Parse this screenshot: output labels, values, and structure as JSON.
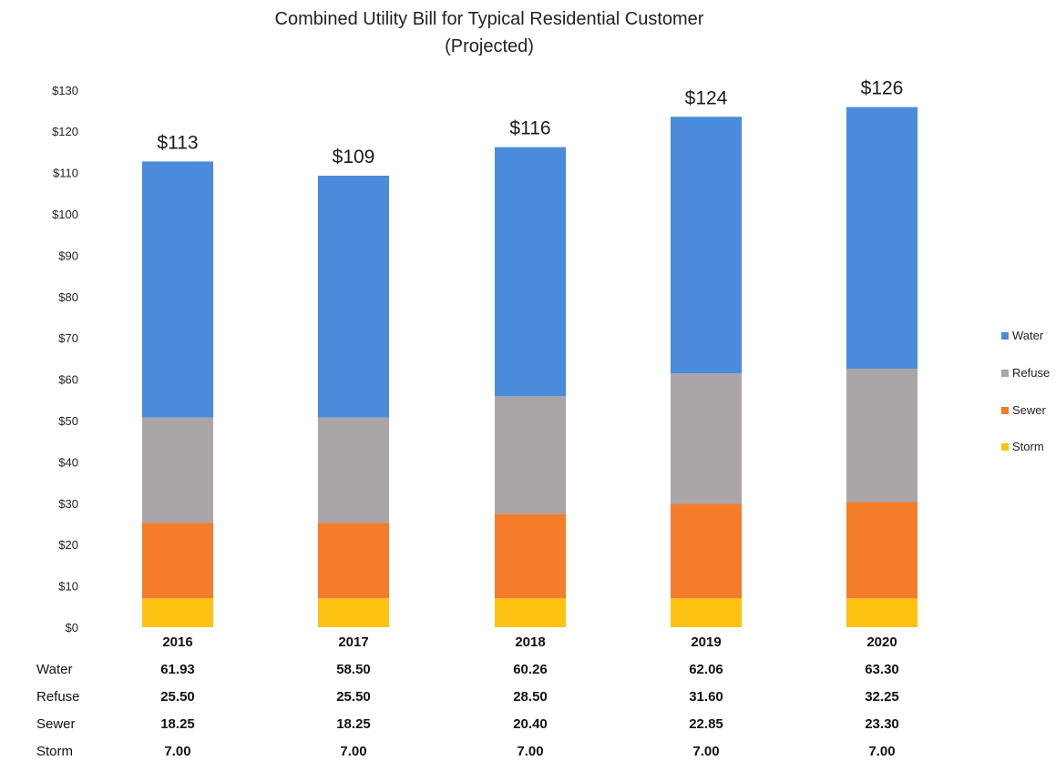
{
  "chart_data": {
    "type": "bar",
    "stacked": true,
    "title": "Combined Utility Bill for Typical Residential Customer",
    "subtitle": "(Projected)",
    "categories": [
      "2016",
      "2017",
      "2018",
      "2019",
      "2020"
    ],
    "series": [
      {
        "name": "Storm",
        "color": "#FDC212",
        "values": [
          7.0,
          7.0,
          7.0,
          7.0,
          7.0
        ],
        "labels": [
          "7.00",
          "7.00",
          "7.00",
          "7.00",
          "7.00"
        ]
      },
      {
        "name": "Sewer",
        "color": "#F47C2A",
        "values": [
          18.25,
          18.25,
          20.4,
          22.85,
          23.3
        ],
        "labels": [
          "18.25",
          "18.25",
          "20.40",
          "22.85",
          "23.30"
        ]
      },
      {
        "name": "Refuse",
        "color": "#A9A5A8",
        "values": [
          25.5,
          25.5,
          28.5,
          31.6,
          32.25
        ],
        "labels": [
          "25.50",
          "25.50",
          "28.50",
          "31.60",
          "32.25"
        ]
      },
      {
        "name": "Water",
        "color": "#4A8BDB",
        "values": [
          61.93,
          58.5,
          60.26,
          62.06,
          63.3
        ],
        "labels": [
          "61.93",
          "58.50",
          "60.26",
          "62.06",
          "63.30"
        ]
      }
    ],
    "totals": [
      "$113",
      "$109",
      "$116",
      "$124",
      "$126"
    ],
    "ylim": [
      0,
      130
    ],
    "yticks": [
      {
        "value": 0,
        "label": "$0"
      },
      {
        "value": 10,
        "label": "$10"
      },
      {
        "value": 20,
        "label": "$20"
      },
      {
        "value": 30,
        "label": "$30"
      },
      {
        "value": 40,
        "label": "$40"
      },
      {
        "value": 50,
        "label": "$50"
      },
      {
        "value": 60,
        "label": "$60"
      },
      {
        "value": 70,
        "label": "$70"
      },
      {
        "value": 80,
        "label": "$80"
      },
      {
        "value": 90,
        "label": "$90"
      },
      {
        "value": 100,
        "label": "$100"
      },
      {
        "value": 110,
        "label": "$110"
      },
      {
        "value": 120,
        "label": "$120"
      },
      {
        "value": 130,
        "label": "$130"
      }
    ],
    "legend": {
      "position": "right",
      "order": [
        "Water",
        "Refuse",
        "Sewer",
        "Storm"
      ]
    },
    "data_table": {
      "row_order": [
        "Water",
        "Refuse",
        "Sewer",
        "Storm"
      ]
    },
    "grid": false
  }
}
